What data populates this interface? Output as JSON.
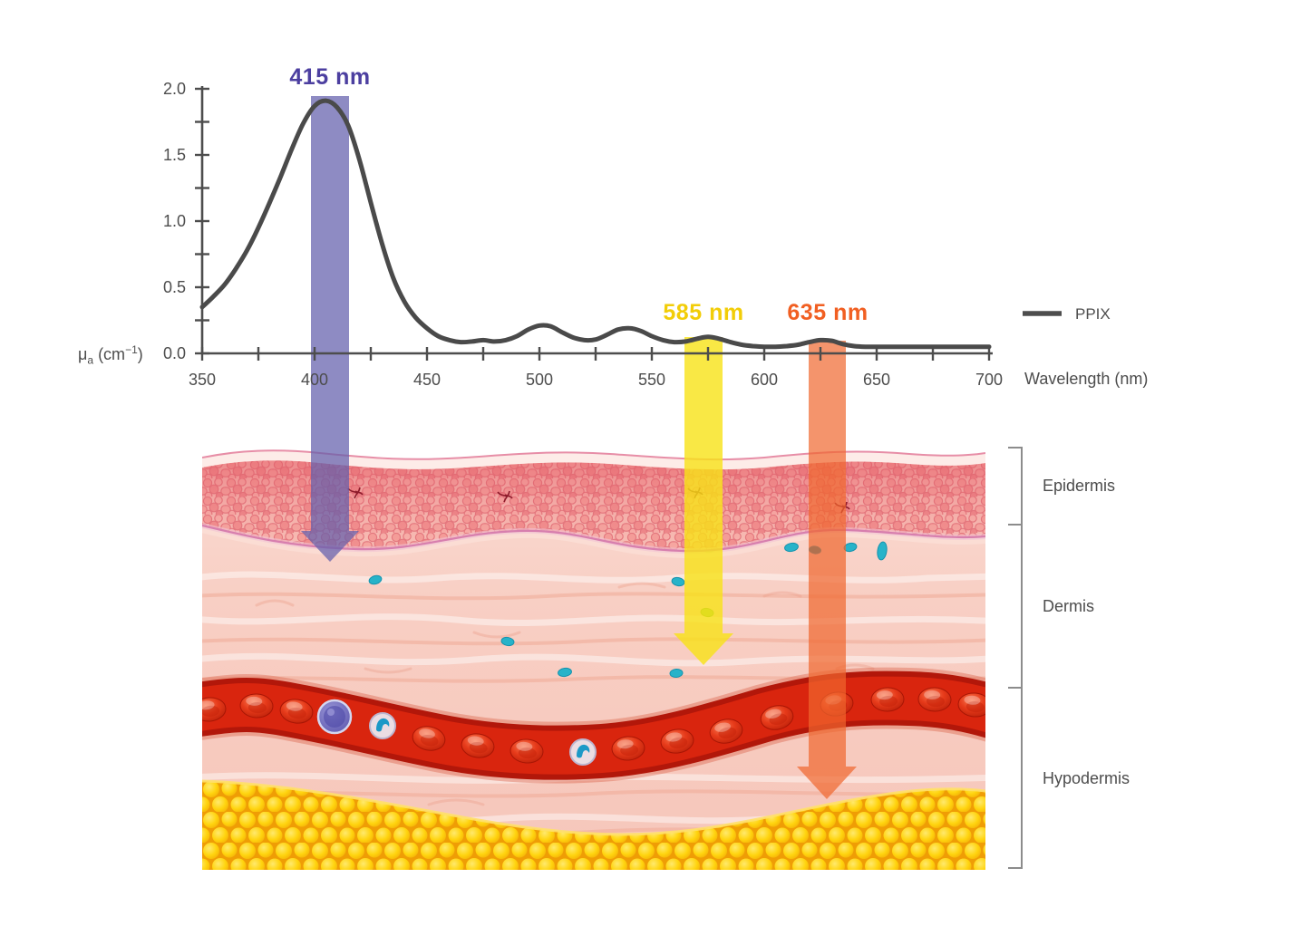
{
  "chart": {
    "legend_label": "PPIX",
    "x_axis_label": "Wavelength (nm)",
    "y_axis_label": {
      "symbol": "μ",
      "subscript": "a",
      "unit_open": " (cm",
      "unit_sup": "−1",
      "unit_close": ")"
    },
    "x_tick_labels": [
      "350",
      "400",
      "450",
      "500",
      "550",
      "600",
      "650",
      "700"
    ],
    "y_tick_labels": [
      "0.0",
      "0.5",
      "1.0",
      "1.5",
      "2.0"
    ]
  },
  "chart_data": {
    "type": "line",
    "title": "",
    "xlabel": "Wavelength (nm)",
    "ylabel": "μ_a (cm⁻¹)",
    "xlim": [
      350,
      700
    ],
    "ylim": [
      0,
      2.0
    ],
    "x_major_tick_step": 50,
    "x_minor_tick_step": 25,
    "y_major_tick_step": 0.5,
    "y_minor_tick_step": 0.25,
    "grid": false,
    "legend_position": "right",
    "series": [
      {
        "name": "PPIX",
        "color": "#4a4a4a",
        "points": [
          [
            350,
            0.35
          ],
          [
            355,
            0.43
          ],
          [
            360,
            0.52
          ],
          [
            365,
            0.64
          ],
          [
            370,
            0.78
          ],
          [
            375,
            0.95
          ],
          [
            380,
            1.14
          ],
          [
            385,
            1.34
          ],
          [
            390,
            1.55
          ],
          [
            395,
            1.74
          ],
          [
            400,
            1.87
          ],
          [
            405,
            1.91
          ],
          [
            410,
            1.86
          ],
          [
            415,
            1.72
          ],
          [
            420,
            1.46
          ],
          [
            425,
            1.14
          ],
          [
            430,
            0.83
          ],
          [
            435,
            0.57
          ],
          [
            440,
            0.39
          ],
          [
            445,
            0.27
          ],
          [
            450,
            0.19
          ],
          [
            455,
            0.13
          ],
          [
            460,
            0.1
          ],
          [
            465,
            0.085
          ],
          [
            470,
            0.09
          ],
          [
            475,
            0.1
          ],
          [
            480,
            0.09
          ],
          [
            485,
            0.1
          ],
          [
            490,
            0.13
          ],
          [
            495,
            0.18
          ],
          [
            500,
            0.21
          ],
          [
            505,
            0.205
          ],
          [
            510,
            0.16
          ],
          [
            515,
            0.12
          ],
          [
            520,
            0.1
          ],
          [
            525,
            0.105
          ],
          [
            530,
            0.14
          ],
          [
            535,
            0.18
          ],
          [
            540,
            0.19
          ],
          [
            545,
            0.17
          ],
          [
            550,
            0.13
          ],
          [
            555,
            0.1
          ],
          [
            560,
            0.085
          ],
          [
            565,
            0.09
          ],
          [
            570,
            0.11
          ],
          [
            575,
            0.125
          ],
          [
            580,
            0.11
          ],
          [
            585,
            0.085
          ],
          [
            590,
            0.065
          ],
          [
            595,
            0.055
          ],
          [
            600,
            0.05
          ],
          [
            605,
            0.05
          ],
          [
            610,
            0.055
          ],
          [
            615,
            0.065
          ],
          [
            620,
            0.085
          ],
          [
            625,
            0.1
          ],
          [
            630,
            0.095
          ],
          [
            635,
            0.07
          ],
          [
            640,
            0.055
          ],
          [
            645,
            0.05
          ],
          [
            650,
            0.05
          ],
          [
            660,
            0.05
          ],
          [
            670,
            0.05
          ],
          [
            680,
            0.05
          ],
          [
            690,
            0.05
          ],
          [
            700,
            0.05
          ]
        ]
      }
    ],
    "annotations": [
      {
        "text": "415 nm",
        "x": 415,
        "kind": "light-beam",
        "color": "#4c3fa0"
      },
      {
        "text": "585 nm",
        "x": 585,
        "kind": "light-beam",
        "color": "#f2cd08"
      },
      {
        "text": "635 nm",
        "x": 635,
        "kind": "light-beam",
        "color": "#f15f22"
      }
    ]
  },
  "beams": [
    {
      "label": "415 nm",
      "wavelength_nm": 415,
      "label_color": "#4c3fa0",
      "beam_color": "rgba(98,94,172,0.72)"
    },
    {
      "label": "585 nm",
      "wavelength_nm": 585,
      "label_color": "#f2cd08",
      "beam_color": "rgba(247,226,22,0.80)"
    },
    {
      "label": "635 nm",
      "wavelength_nm": 635,
      "label_color": "#f15f22",
      "beam_color": "rgba(240,103,46,0.70)"
    }
  ],
  "skin_layers": [
    {
      "label": "Epidermis"
    },
    {
      "label": "Dermis"
    },
    {
      "label": "Hypodermis"
    }
  ]
}
